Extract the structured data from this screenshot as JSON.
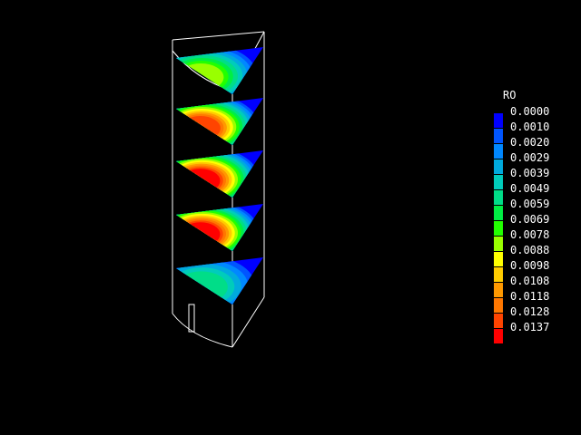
{
  "legend": {
    "title": "RO",
    "entries": [
      {
        "label": "0.0000",
        "color": "#0000ff"
      },
      {
        "label": "0.0010",
        "color": "#0055ff"
      },
      {
        "label": "0.0020",
        "color": "#0088ff"
      },
      {
        "label": "0.0029",
        "color": "#00aadd"
      },
      {
        "label": "0.0039",
        "color": "#00ccbb"
      },
      {
        "label": "0.0049",
        "color": "#00dd88"
      },
      {
        "label": "0.0059",
        "color": "#00ee44"
      },
      {
        "label": "0.0069",
        "color": "#22ff00"
      },
      {
        "label": "0.0078",
        "color": "#99ff00"
      },
      {
        "label": "0.0088",
        "color": "#ffff00"
      },
      {
        "label": "0.0098",
        "color": "#ffcc00"
      },
      {
        "label": "0.0108",
        "color": "#ff9900"
      },
      {
        "label": "0.0118",
        "color": "#ff7700"
      },
      {
        "label": "0.0128",
        "color": "#ff4400"
      },
      {
        "label": "0.0137",
        "color": "#ff0000"
      }
    ]
  },
  "slices": [
    {
      "id": "slice-1",
      "intensity": 0.55
    },
    {
      "id": "slice-2",
      "intensity": 0.95
    },
    {
      "id": "slice-3",
      "intensity": 1.0
    },
    {
      "id": "slice-4",
      "intensity": 1.0
    },
    {
      "id": "slice-5",
      "intensity": 0.35
    }
  ]
}
